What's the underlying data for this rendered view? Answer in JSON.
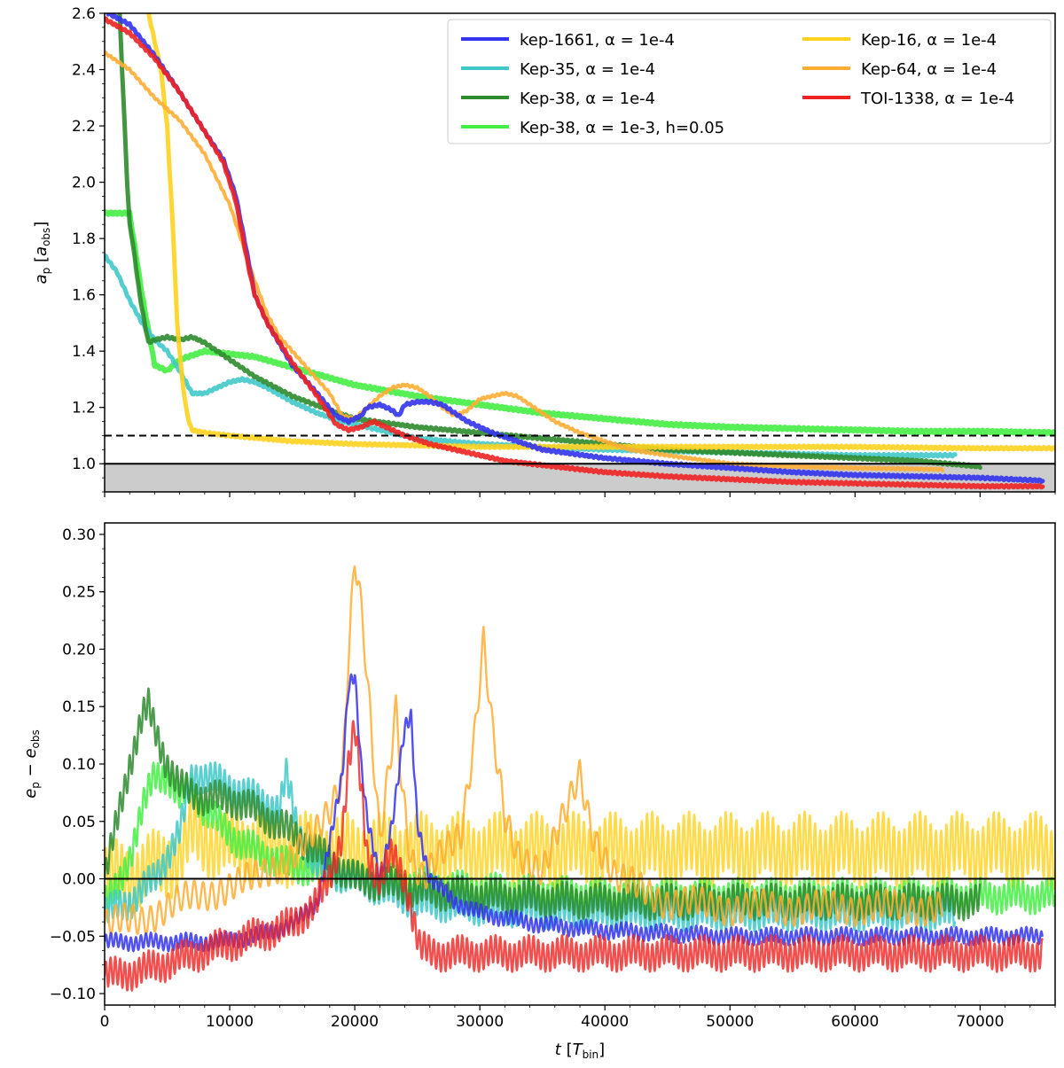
{
  "chart_data": [
    {
      "type": "line",
      "id": "top",
      "ylabel": "a_p [a_obs]",
      "ylabel_main": "a",
      "ylabel_sub": "p",
      "ylabel_unit_open": " [",
      "ylabel_unit": "a",
      "ylabel_unit_sub": "obs",
      "ylabel_unit_close": "]",
      "xlim": [
        0,
        76000
      ],
      "ylim": [
        0.9,
        2.6
      ],
      "yticks": [
        1.0,
        1.2,
        1.4,
        1.6,
        1.8,
        2.0,
        2.2,
        2.4,
        2.6
      ],
      "ytick_labels": [
        "1.0",
        "1.2",
        "1.4",
        "1.6",
        "1.8",
        "2.0",
        "2.2",
        "2.4",
        "2.6"
      ],
      "xticks": [
        0,
        10000,
        20000,
        30000,
        40000,
        50000,
        60000,
        70000
      ],
      "shaded_band": [
        0.9,
        1.0
      ],
      "hlines": [
        {
          "y": 1.0,
          "style": "solid"
        },
        {
          "y": 1.1,
          "style": "dashed"
        }
      ],
      "legend": {
        "placement": "top-right",
        "columns": [
          [
            {
              "label": "kep-1661, α = 1e-4",
              "color": "#3333ee"
            },
            {
              "label": "Kep-35, α = 1e-4",
              "color": "#40c8c8"
            },
            {
              "label": "Kep-38, α = 1e-4",
              "color": "#2e8b2e"
            },
            {
              "label": "Kep-38, α = 1e-3, h=0.05",
              "color": "#44ee44"
            }
          ],
          [
            {
              "label": "Kep-16, α = 1e-4",
              "color": "#ffd21e"
            },
            {
              "label": "Kep-64, α = 1e-4",
              "color": "#ffad33"
            },
            {
              "label": "TOI-1338, α = 1e-4",
              "color": "#ee2222"
            }
          ]
        ]
      },
      "series": [
        {
          "name": "Kep-38, α = 1e-3, h=0.05",
          "color": "#44ee44",
          "width": 6,
          "x": [
            0,
            2000,
            3000,
            4000,
            5000,
            6000,
            8000,
            12000,
            16000,
            20000,
            25000,
            30000,
            35000,
            40000,
            45000,
            50000,
            55000,
            60000,
            65000,
            70000,
            76000
          ],
          "y": [
            1.89,
            1.89,
            1.6,
            1.35,
            1.33,
            1.37,
            1.4,
            1.38,
            1.33,
            1.28,
            1.24,
            1.21,
            1.18,
            1.16,
            1.14,
            1.13,
            1.125,
            1.12,
            1.115,
            1.115,
            1.11
          ]
        },
        {
          "name": "Kep-35, α = 1e-4",
          "color": "#40c8c8",
          "width": 5,
          "x": [
            0,
            1000,
            2000,
            3000,
            4000,
            5000,
            6000,
            7000,
            8000,
            10000,
            11000,
            12000,
            13000,
            15000,
            17000,
            19000,
            20000,
            22000,
            25000,
            30000,
            35000,
            40000,
            45000,
            50000,
            55000,
            60000,
            65000,
            68000
          ],
          "y": [
            1.74,
            1.68,
            1.58,
            1.5,
            1.44,
            1.4,
            1.33,
            1.25,
            1.25,
            1.29,
            1.3,
            1.29,
            1.27,
            1.22,
            1.18,
            1.15,
            1.14,
            1.12,
            1.09,
            1.07,
            1.06,
            1.05,
            1.045,
            1.04,
            1.035,
            1.03,
            1.03,
            1.03
          ]
        },
        {
          "name": "Kep-38, α = 1e-4",
          "color": "#2e8b2e",
          "width": 5,
          "x": [
            1200,
            1400,
            1600,
            1800,
            2000,
            2200,
            2500,
            2800,
            3200,
            3500,
            4000,
            5000,
            6000,
            7000,
            8000,
            10000,
            12000,
            15000,
            18000,
            20000,
            25000,
            30000,
            35000,
            40000,
            45000,
            50000,
            55000,
            60000,
            65000,
            70000
          ],
          "y": [
            2.6,
            2.4,
            2.2,
            2.0,
            1.85,
            1.8,
            1.7,
            1.6,
            1.5,
            1.43,
            1.44,
            1.45,
            1.44,
            1.45,
            1.43,
            1.37,
            1.31,
            1.24,
            1.19,
            1.16,
            1.13,
            1.11,
            1.09,
            1.07,
            1.05,
            1.04,
            1.03,
            1.02,
            1.01,
            0.99
          ]
        },
        {
          "name": "Kep-16, α = 1e-4",
          "color": "#ffd21e",
          "width": 5,
          "x": [
            3500,
            4000,
            4500,
            5000,
            5500,
            5800,
            6200,
            6500,
            6800,
            7000,
            8000,
            10000,
            15000,
            20000,
            30000,
            40000,
            50000,
            60000,
            70000,
            76000
          ],
          "y": [
            2.6,
            2.5,
            2.4,
            2.2,
            1.8,
            1.5,
            1.3,
            1.2,
            1.14,
            1.12,
            1.11,
            1.1,
            1.08,
            1.07,
            1.06,
            1.06,
            1.06,
            1.06,
            1.055,
            1.055
          ]
        },
        {
          "name": "Kep-64, α = 1e-4",
          "color": "#ffad33",
          "width": 4,
          "x": [
            0,
            2000,
            4000,
            6000,
            8000,
            10000,
            12000,
            13000,
            14000,
            16000,
            18000,
            19000,
            20000,
            21000,
            22000,
            23000,
            24000,
            25000,
            26000,
            27000,
            28000,
            29000,
            30000,
            31000,
            32000,
            33000,
            34000,
            36000,
            38000,
            40000,
            42000,
            45000,
            50000,
            55000,
            60000,
            67000
          ],
          "y": [
            2.46,
            2.4,
            2.3,
            2.22,
            2.1,
            1.92,
            1.65,
            1.53,
            1.45,
            1.35,
            1.25,
            1.17,
            1.16,
            1.2,
            1.24,
            1.27,
            1.28,
            1.27,
            1.24,
            1.2,
            1.17,
            1.19,
            1.23,
            1.24,
            1.25,
            1.24,
            1.21,
            1.15,
            1.11,
            1.08,
            1.05,
            1.03,
            1.0,
            0.99,
            0.985,
            0.98
          ]
        },
        {
          "name": "kep-1661, α = 1e-4",
          "color": "#3333ee",
          "width": 5,
          "x": [
            300,
            2000,
            4000,
            6000,
            8000,
            9500,
            10500,
            11500,
            12000,
            13000,
            15000,
            17000,
            18500,
            19500,
            20500,
            21000,
            22000,
            23000,
            23500,
            24000,
            25000,
            26000,
            27000,
            28000,
            29000,
            31000,
            33000,
            35000,
            40000,
            45000,
            50000,
            55000,
            60000,
            65000,
            70000,
            75000
          ],
          "y": [
            2.6,
            2.56,
            2.45,
            2.32,
            2.18,
            2.08,
            1.95,
            1.72,
            1.6,
            1.5,
            1.35,
            1.25,
            1.17,
            1.15,
            1.17,
            1.2,
            1.21,
            1.19,
            1.17,
            1.21,
            1.22,
            1.22,
            1.21,
            1.18,
            1.15,
            1.11,
            1.08,
            1.05,
            1.02,
            1.0,
            0.985,
            0.97,
            0.96,
            0.955,
            0.95,
            0.94
          ]
        },
        {
          "name": "TOI-1338, α = 1e-4",
          "color": "#ee2222",
          "width": 5,
          "x": [
            0,
            2000,
            4000,
            6000,
            8000,
            9500,
            10500,
            11500,
            12000,
            13000,
            15000,
            17000,
            18500,
            19500,
            20500,
            21500,
            22500,
            24000,
            26000,
            28000,
            30000,
            32000,
            35000,
            40000,
            45000,
            50000,
            55000,
            60000,
            65000,
            70000,
            75000
          ],
          "y": [
            2.58,
            2.53,
            2.44,
            2.32,
            2.18,
            2.07,
            1.93,
            1.7,
            1.6,
            1.5,
            1.36,
            1.24,
            1.14,
            1.12,
            1.13,
            1.15,
            1.13,
            1.1,
            1.07,
            1.05,
            1.03,
            1.01,
            0.995,
            0.97,
            0.955,
            0.945,
            0.935,
            0.93,
            0.925,
            0.92,
            0.92
          ]
        }
      ]
    },
    {
      "type": "line",
      "id": "bottom",
      "ylabel": "e_p − e_obs",
      "ylabel_main": "e",
      "ylabel_sub": "p",
      "ylabel_minus": " − ",
      "ylabel_main2": "e",
      "ylabel_sub2": "obs",
      "xlabel": "t [T_bin]",
      "xlabel_main": "t",
      "xlabel_unit_open": " [",
      "xlabel_unit": "T",
      "xlabel_unit_sub": "bin",
      "xlabel_unit_close": "]",
      "xlim": [
        0,
        76000
      ],
      "ylim": [
        -0.11,
        0.31
      ],
      "yticks": [
        -0.1,
        -0.05,
        0.0,
        0.05,
        0.1,
        0.15,
        0.2,
        0.25,
        0.3
      ],
      "ytick_labels": [
        "−0.10",
        "−0.05",
        "0.00",
        "0.05",
        "0.10",
        "0.15",
        "0.20",
        "0.25",
        "0.30"
      ],
      "xticks": [
        0,
        10000,
        20000,
        30000,
        40000,
        50000,
        60000,
        70000
      ],
      "xtick_labels": [
        "0",
        "10000",
        "20000",
        "30000",
        "40000",
        "50000",
        "60000",
        "70000"
      ],
      "hlines": [
        {
          "y": 0.0,
          "style": "solid"
        }
      ],
      "series": [
        {
          "name": "Kep-16",
          "color": "#ffd21e",
          "opacity": 0.8,
          "amp": 0.025,
          "period": 420,
          "x": [
            0,
            3000,
            6000,
            7000,
            9000,
            12000,
            15000,
            20000,
            30000,
            40000,
            50000,
            60000,
            70000,
            76000
          ],
          "y": [
            0.0,
            0.005,
            0.02,
            0.04,
            0.03,
            0.03,
            0.025,
            0.025,
            0.025,
            0.025,
            0.025,
            0.025,
            0.025,
            0.025
          ]
        },
        {
          "name": "Kep-38 h=0.05",
          "color": "#44ee44",
          "opacity": 0.85,
          "amp": 0.012,
          "period": 380,
          "x": [
            0,
            1000,
            2000,
            3000,
            4000,
            5000,
            6000,
            7000,
            8000,
            9000,
            11000,
            13000,
            15000,
            18000,
            20000,
            25000,
            30000,
            40000,
            50000,
            60000,
            67000,
            70000,
            76000
          ],
          "y": [
            -0.02,
            -0.01,
            0.02,
            0.06,
            0.09,
            0.09,
            0.07,
            0.08,
            0.06,
            0.05,
            0.03,
            0.02,
            0.01,
            0.01,
            0.0,
            -0.005,
            -0.01,
            -0.015,
            -0.015,
            -0.015,
            -0.015,
            -0.015,
            -0.015
          ]
        },
        {
          "name": "Kep-35",
          "color": "#40c8c8",
          "opacity": 0.85,
          "amp": 0.012,
          "period": 380,
          "x": [
            0,
            2000,
            4000,
            6000,
            7000,
            8000,
            10000,
            12000,
            14000,
            14500,
            15500,
            17000,
            20000,
            25000,
            30000,
            40000,
            50000,
            60000,
            68000
          ],
          "y": [
            -0.03,
            -0.02,
            0.0,
            0.04,
            0.09,
            0.09,
            0.08,
            0.07,
            0.06,
            0.09,
            0.04,
            0.01,
            0.0,
            -0.02,
            -0.025,
            -0.03,
            -0.03,
            -0.03,
            -0.03
          ]
        },
        {
          "name": "Kep-38",
          "color": "#2e8b2e",
          "opacity": 0.85,
          "amp": 0.012,
          "period": 380,
          "x": [
            0,
            1000,
            2000,
            3000,
            3500,
            4000,
            5000,
            6000,
            8000,
            10000,
            12000,
            15000,
            20000,
            25000,
            30000,
            40000,
            50000,
            60000,
            70000
          ],
          "y": [
            0.0,
            0.05,
            0.1,
            0.14,
            0.15,
            0.13,
            0.1,
            0.08,
            0.07,
            0.07,
            0.06,
            0.04,
            0.0,
            -0.01,
            -0.015,
            -0.02,
            -0.02,
            -0.02,
            -0.02
          ]
        },
        {
          "name": "Kep-64",
          "color": "#ffad33",
          "opacity": 0.85,
          "amp": 0.012,
          "period": 700,
          "x": [
            0,
            3000,
            6000,
            9000,
            12000,
            15000,
            17000,
            18000,
            19000,
            19500,
            20000,
            20300,
            20800,
            21500,
            22000,
            22800,
            23300,
            23800,
            24500,
            25500,
            27000,
            28500,
            29500,
            30300,
            31000,
            32000,
            33000,
            35000,
            37000,
            38000,
            39000,
            40000,
            41000,
            43000,
            45000,
            50000,
            60000,
            67000
          ],
          "y": [
            -0.04,
            -0.035,
            -0.02,
            -0.01,
            0.0,
            0.02,
            0.04,
            0.06,
            0.09,
            0.2,
            0.28,
            0.26,
            0.2,
            0.1,
            0.03,
            0.1,
            0.15,
            0.08,
            0.02,
            0.0,
            0.02,
            0.04,
            0.12,
            0.21,
            0.13,
            0.05,
            0.02,
            0.01,
            0.06,
            0.09,
            0.04,
            0.02,
            0.0,
            -0.01,
            -0.02,
            -0.025,
            -0.025,
            -0.025
          ]
        },
        {
          "name": "kep-1661",
          "color": "#3333ee",
          "opacity": 0.85,
          "amp": 0.006,
          "period": 400,
          "x": [
            0,
            3000,
            6000,
            9000,
            12000,
            15000,
            17000,
            18000,
            19000,
            19500,
            20000,
            20500,
            21000,
            22000,
            23000,
            24000,
            24500,
            25000,
            26000,
            28000,
            30000,
            35000,
            40000,
            50000,
            60000,
            70000,
            75000
          ],
          "y": [
            -0.055,
            -0.055,
            -0.055,
            -0.055,
            -0.05,
            -0.04,
            -0.02,
            0.03,
            0.09,
            0.17,
            0.18,
            0.1,
            0.05,
            0.0,
            0.05,
            0.13,
            0.14,
            0.05,
            0.0,
            -0.02,
            -0.03,
            -0.04,
            -0.045,
            -0.05,
            -0.05,
            -0.05,
            -0.05
          ]
        },
        {
          "name": "TOI-1338",
          "color": "#ee2222",
          "opacity": 0.8,
          "amp": 0.012,
          "period": 380,
          "x": [
            0,
            3000,
            6000,
            9000,
            12000,
            15000,
            17000,
            18000,
            19000,
            19500,
            20000,
            20500,
            21000,
            22000,
            23000,
            24000,
            24800,
            25200,
            26000,
            28000,
            30000,
            35000,
            40000,
            50000,
            60000,
            70000,
            75000
          ],
          "y": [
            -0.085,
            -0.08,
            -0.07,
            -0.06,
            -0.05,
            -0.04,
            -0.02,
            0.0,
            0.04,
            0.1,
            0.13,
            0.08,
            0.02,
            0.0,
            0.02,
            0.0,
            -0.04,
            -0.06,
            -0.065,
            -0.065,
            -0.065,
            -0.065,
            -0.065,
            -0.065,
            -0.065,
            -0.065,
            -0.065
          ]
        }
      ]
    }
  ]
}
